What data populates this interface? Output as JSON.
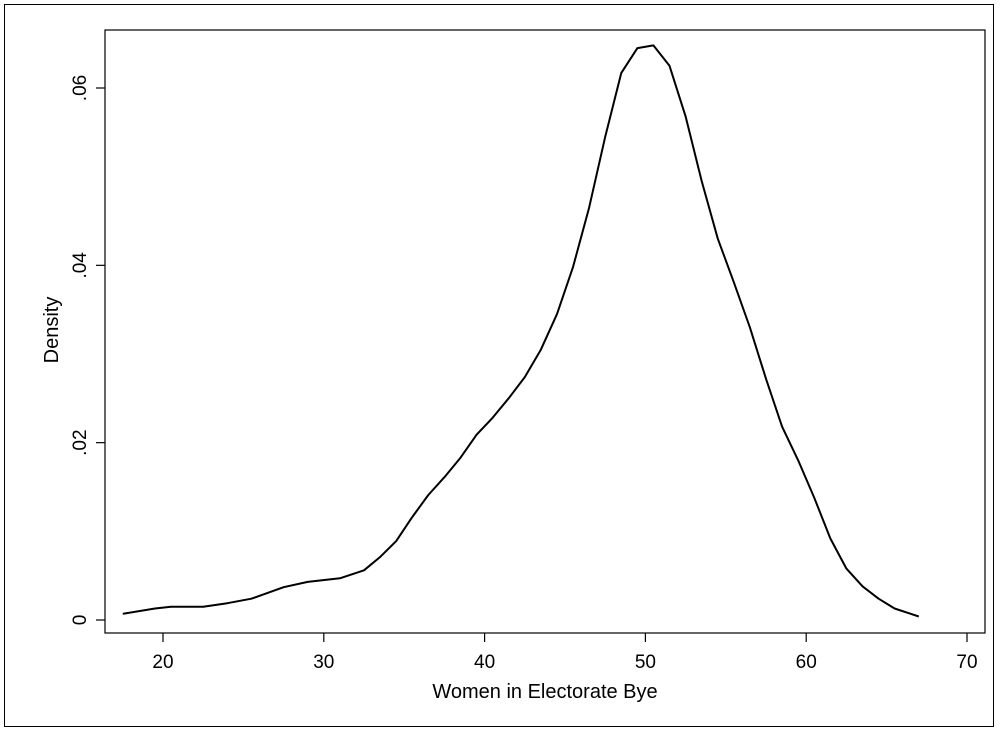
{
  "chart_data": {
    "type": "line",
    "title": "",
    "xlabel": "Women in Electorate Bye",
    "ylabel": "Density",
    "xlim": [
      17,
      70
    ],
    "ylim": [
      0,
      0.065
    ],
    "xticks": [
      20,
      30,
      40,
      50,
      60,
      70
    ],
    "xtick_labels": [
      "20",
      "30",
      "40",
      "50",
      "60",
      "70"
    ],
    "yticks": [
      0,
      0.02,
      0.04,
      0.06
    ],
    "ytick_labels": [
      "0",
      ".02",
      ".04",
      ".06"
    ],
    "grid": false,
    "colors": {
      "line": "#000000",
      "frame": "#000000"
    },
    "series": [
      {
        "x": [
          17.5,
          19.5,
          20.5,
          22.5,
          24.0,
          25.5,
          27.5,
          29.0,
          31.0,
          32.5,
          33.5,
          34.5,
          35.5,
          36.5,
          37.5,
          38.5,
          39.5,
          40.5,
          41.5,
          42.5,
          43.5,
          44.5,
          45.5,
          46.5,
          47.5,
          48.5,
          49.5,
          50.5,
          51.5,
          52.5,
          53.5,
          54.5,
          55.5,
          56.5,
          57.5,
          58.5,
          59.5,
          60.5,
          61.5,
          62.5,
          63.5,
          64.5,
          65.5,
          66.5,
          67.0
        ],
        "y": [
          0.0007,
          0.0013,
          0.0015,
          0.0015,
          0.0019,
          0.0024,
          0.0037,
          0.0043,
          0.0047,
          0.0056,
          0.0071,
          0.0089,
          0.0116,
          0.0141,
          0.0161,
          0.0183,
          0.0209,
          0.0228,
          0.025,
          0.0274,
          0.0305,
          0.0345,
          0.0398,
          0.0465,
          0.0545,
          0.0617,
          0.0645,
          0.0648,
          0.0625,
          0.0568,
          0.0495,
          0.043,
          0.0381,
          0.033,
          0.0272,
          0.0218,
          0.018,
          0.0138,
          0.0092,
          0.0058,
          0.0038,
          0.0024,
          0.0013,
          0.0007,
          0.0004
        ]
      }
    ]
  }
}
